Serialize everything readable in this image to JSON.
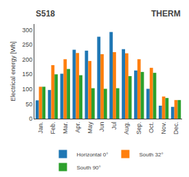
{
  "chart_data": {
    "type": "bar",
    "annotations": [
      "S518",
      "THERM"
    ],
    "categories": [
      "Jan.",
      "Feb.",
      "Mar.",
      "Apr.",
      "May",
      "Jun",
      "Jul",
      "Aug.",
      "Sep.",
      "Oct.",
      "Nov.",
      "Dec."
    ],
    "series": [
      {
        "name": "Horizontal 0°",
        "values": [
          62,
          97,
          152,
          233,
          230,
          277,
          293,
          235,
          163,
          101,
          44,
          40
        ]
      },
      {
        "name": "South 32°",
        "values": [
          108,
          181,
          201,
          222,
          195,
          218,
          225,
          221,
          201,
          172,
          75,
          63
        ]
      },
      {
        "name": "South 90°",
        "values": [
          108,
          150,
          168,
          147,
          103,
          101,
          103,
          144,
          158,
          155,
          70,
          63
        ]
      }
    ],
    "ylabel": "Electrical energy [Wh]",
    "ylim": [
      0,
      320
    ],
    "yticks": [
      0,
      50,
      100,
      150,
      200,
      250,
      300
    ],
    "grid": false,
    "legend": "bottom"
  }
}
